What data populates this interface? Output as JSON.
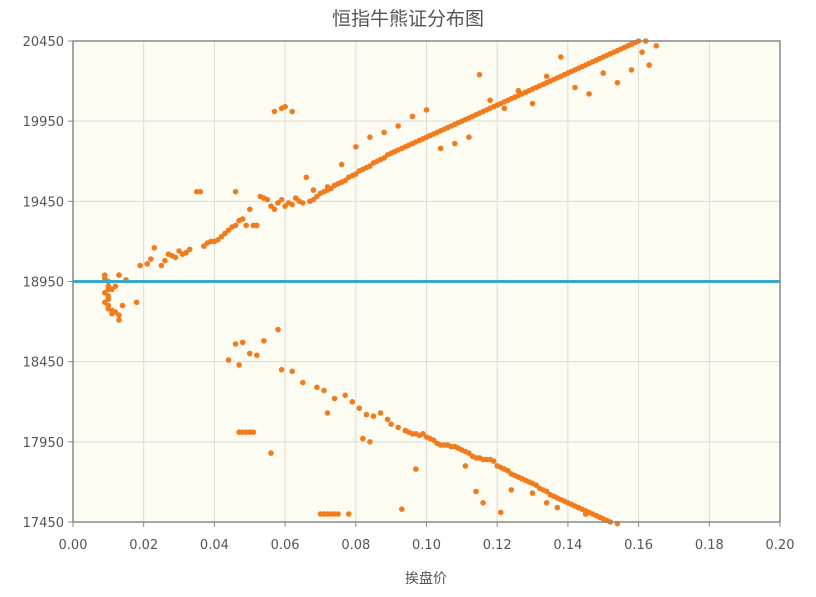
{
  "chart_data": {
    "type": "scatter",
    "title": "恒指牛熊证分布图",
    "xlabel": "挨盘价",
    "ylabel": "",
    "xlim": [
      0.0,
      0.2
    ],
    "ylim": [
      17450,
      20450
    ],
    "x_ticks": [
      "0.00",
      "0.02",
      "0.04",
      "0.06",
      "0.08",
      "0.10",
      "0.12",
      "0.14",
      "0.16",
      "0.18",
      "0.20"
    ],
    "y_ticks": [
      "20450",
      "19950",
      "19450",
      "18950",
      "18450",
      "17950",
      "17450"
    ],
    "grid": true,
    "reference_line": {
      "y": 18950,
      "color": "#3aa6c8"
    },
    "point_color": "#f07c1e",
    "series": [
      {
        "points": [
          [
            0.009,
            18990
          ],
          [
            0.009,
            18970
          ],
          [
            0.01,
            18950
          ],
          [
            0.01,
            18920
          ],
          [
            0.01,
            18900
          ],
          [
            0.009,
            18880
          ],
          [
            0.01,
            18860
          ],
          [
            0.01,
            18840
          ],
          [
            0.009,
            18820
          ],
          [
            0.01,
            18800
          ],
          [
            0.01,
            18780
          ],
          [
            0.011,
            18770
          ],
          [
            0.012,
            18760
          ],
          [
            0.013,
            18740
          ],
          [
            0.013,
            18710
          ],
          [
            0.011,
            18900
          ],
          [
            0.012,
            18920
          ],
          [
            0.013,
            18990
          ],
          [
            0.015,
            18960
          ],
          [
            0.018,
            18820
          ],
          [
            0.014,
            18800
          ],
          [
            0.011,
            18750
          ],
          [
            0.019,
            19050
          ],
          [
            0.021,
            19060
          ],
          [
            0.022,
            19090
          ],
          [
            0.023,
            19160
          ],
          [
            0.025,
            19050
          ],
          [
            0.026,
            19080
          ],
          [
            0.027,
            19120
          ],
          [
            0.028,
            19110
          ],
          [
            0.029,
            19100
          ],
          [
            0.03,
            19140
          ],
          [
            0.031,
            19120
          ],
          [
            0.032,
            19130
          ],
          [
            0.033,
            19150
          ],
          [
            0.035,
            19510
          ],
          [
            0.036,
            19510
          ],
          [
            0.037,
            19170
          ],
          [
            0.038,
            19190
          ],
          [
            0.039,
            19200
          ],
          [
            0.04,
            19200
          ],
          [
            0.041,
            19210
          ],
          [
            0.042,
            19230
          ],
          [
            0.043,
            19250
          ],
          [
            0.044,
            19270
          ],
          [
            0.045,
            19290
          ],
          [
            0.046,
            19300
          ],
          [
            0.046,
            19510
          ],
          [
            0.047,
            19330
          ],
          [
            0.048,
            19340
          ],
          [
            0.049,
            19300
          ],
          [
            0.05,
            19400
          ],
          [
            0.051,
            19300
          ],
          [
            0.052,
            19300
          ],
          [
            0.053,
            19480
          ],
          [
            0.054,
            19470
          ],
          [
            0.055,
            19460
          ],
          [
            0.056,
            19420
          ],
          [
            0.057,
            19400
          ],
          [
            0.058,
            19440
          ],
          [
            0.059,
            19460
          ],
          [
            0.06,
            19420
          ],
          [
            0.061,
            19440
          ],
          [
            0.062,
            19430
          ],
          [
            0.063,
            19470
          ],
          [
            0.064,
            19450
          ],
          [
            0.065,
            19440
          ],
          [
            0.066,
            19600
          ],
          [
            0.067,
            19450
          ],
          [
            0.068,
            19460
          ],
          [
            0.069,
            19480
          ],
          [
            0.07,
            19500
          ],
          [
            0.071,
            19510
          ],
          [
            0.072,
            19520
          ],
          [
            0.073,
            19530
          ],
          [
            0.074,
            19550
          ],
          [
            0.075,
            19560
          ],
          [
            0.076,
            19570
          ],
          [
            0.077,
            19580
          ],
          [
            0.078,
            19600
          ],
          [
            0.079,
            19610
          ],
          [
            0.08,
            19620
          ],
          [
            0.081,
            19640
          ],
          [
            0.082,
            19650
          ],
          [
            0.083,
            19660
          ],
          [
            0.084,
            19670
          ],
          [
            0.085,
            19690
          ],
          [
            0.086,
            19700
          ],
          [
            0.087,
            19710
          ],
          [
            0.088,
            19720
          ],
          [
            0.089,
            19740
          ],
          [
            0.09,
            19750
          ],
          [
            0.091,
            19760
          ],
          [
            0.092,
            19770
          ],
          [
            0.093,
            19780
          ],
          [
            0.094,
            19790
          ],
          [
            0.095,
            19800
          ],
          [
            0.096,
            19810
          ],
          [
            0.097,
            19820
          ],
          [
            0.098,
            19830
          ],
          [
            0.099,
            19840
          ],
          [
            0.1,
            19850
          ],
          [
            0.101,
            19860
          ],
          [
            0.102,
            19870
          ],
          [
            0.103,
            19880
          ],
          [
            0.104,
            19890
          ],
          [
            0.105,
            19900
          ],
          [
            0.106,
            19910
          ],
          [
            0.107,
            19920
          ],
          [
            0.108,
            19930
          ],
          [
            0.109,
            19940
          ],
          [
            0.11,
            19950
          ],
          [
            0.111,
            19960
          ],
          [
            0.112,
            19970
          ],
          [
            0.113,
            19980
          ],
          [
            0.114,
            19990
          ],
          [
            0.115,
            20000
          ],
          [
            0.116,
            20010
          ],
          [
            0.117,
            20020
          ],
          [
            0.118,
            20030
          ],
          [
            0.119,
            20040
          ],
          [
            0.12,
            20050
          ],
          [
            0.121,
            20060
          ],
          [
            0.122,
            20070
          ],
          [
            0.123,
            20080
          ],
          [
            0.124,
            20090
          ],
          [
            0.125,
            20100
          ],
          [
            0.126,
            20110
          ],
          [
            0.127,
            20120
          ],
          [
            0.128,
            20130
          ],
          [
            0.129,
            20140
          ],
          [
            0.13,
            20150
          ],
          [
            0.131,
            20160
          ],
          [
            0.132,
            20170
          ],
          [
            0.133,
            20180
          ],
          [
            0.134,
            20190
          ],
          [
            0.135,
            20200
          ],
          [
            0.136,
            20210
          ],
          [
            0.137,
            20220
          ],
          [
            0.138,
            20230
          ],
          [
            0.139,
            20240
          ],
          [
            0.14,
            20250
          ],
          [
            0.141,
            20260
          ],
          [
            0.142,
            20270
          ],
          [
            0.143,
            20280
          ],
          [
            0.144,
            20290
          ],
          [
            0.145,
            20300
          ],
          [
            0.146,
            20310
          ],
          [
            0.147,
            20320
          ],
          [
            0.148,
            20330
          ],
          [
            0.149,
            20340
          ],
          [
            0.15,
            20350
          ],
          [
            0.151,
            20360
          ],
          [
            0.152,
            20370
          ],
          [
            0.153,
            20380
          ],
          [
            0.154,
            20390
          ],
          [
            0.155,
            20400
          ],
          [
            0.156,
            20410
          ],
          [
            0.157,
            20420
          ],
          [
            0.158,
            20430
          ],
          [
            0.159,
            20440
          ],
          [
            0.16,
            20450
          ],
          [
            0.162,
            20450
          ],
          [
            0.165,
            20420
          ],
          [
            0.057,
            20010
          ],
          [
            0.059,
            20030
          ],
          [
            0.06,
            20040
          ],
          [
            0.062,
            20010
          ],
          [
            0.068,
            19520
          ],
          [
            0.072,
            19540
          ],
          [
            0.076,
            19680
          ],
          [
            0.08,
            19790
          ],
          [
            0.084,
            19850
          ],
          [
            0.088,
            19880
          ],
          [
            0.092,
            19920
          ],
          [
            0.096,
            19980
          ],
          [
            0.1,
            20020
          ],
          [
            0.104,
            19780
          ],
          [
            0.108,
            19810
          ],
          [
            0.112,
            19850
          ],
          [
            0.115,
            20240
          ],
          [
            0.118,
            20080
          ],
          [
            0.122,
            20030
          ],
          [
            0.126,
            20140
          ],
          [
            0.13,
            20060
          ],
          [
            0.134,
            20230
          ],
          [
            0.138,
            20350
          ],
          [
            0.142,
            20160
          ],
          [
            0.146,
            20120
          ],
          [
            0.15,
            20250
          ],
          [
            0.154,
            20190
          ],
          [
            0.158,
            20270
          ],
          [
            0.161,
            20380
          ],
          [
            0.163,
            20300
          ],
          [
            0.044,
            18460
          ],
          [
            0.046,
            18560
          ],
          [
            0.047,
            18430
          ],
          [
            0.048,
            18570
          ],
          [
            0.05,
            18500
          ],
          [
            0.052,
            18490
          ],
          [
            0.054,
            18580
          ],
          [
            0.058,
            18650
          ],
          [
            0.059,
            18400
          ],
          [
            0.062,
            18390
          ],
          [
            0.065,
            18320
          ],
          [
            0.069,
            18290
          ],
          [
            0.071,
            18270
          ],
          [
            0.072,
            18130
          ],
          [
            0.074,
            18220
          ],
          [
            0.077,
            18240
          ],
          [
            0.079,
            18200
          ],
          [
            0.081,
            18160
          ],
          [
            0.083,
            18120
          ],
          [
            0.085,
            18110
          ],
          [
            0.087,
            18130
          ],
          [
            0.089,
            18090
          ],
          [
            0.09,
            18060
          ],
          [
            0.092,
            18040
          ],
          [
            0.094,
            18020
          ],
          [
            0.095,
            18010
          ],
          [
            0.096,
            18000
          ],
          [
            0.097,
            18000
          ],
          [
            0.098,
            17990
          ],
          [
            0.099,
            18000
          ],
          [
            0.1,
            17980
          ],
          [
            0.101,
            17970
          ],
          [
            0.102,
            17960
          ],
          [
            0.103,
            17940
          ],
          [
            0.104,
            17930
          ],
          [
            0.105,
            17930
          ],
          [
            0.106,
            17930
          ],
          [
            0.107,
            17920
          ],
          [
            0.108,
            17920
          ],
          [
            0.109,
            17910
          ],
          [
            0.11,
            17900
          ],
          [
            0.111,
            17890
          ],
          [
            0.112,
            17880
          ],
          [
            0.113,
            17860
          ],
          [
            0.114,
            17850
          ],
          [
            0.115,
            17850
          ],
          [
            0.116,
            17840
          ],
          [
            0.117,
            17840
          ],
          [
            0.118,
            17840
          ],
          [
            0.119,
            17830
          ],
          [
            0.12,
            17800
          ],
          [
            0.121,
            17790
          ],
          [
            0.122,
            17780
          ],
          [
            0.123,
            17770
          ],
          [
            0.124,
            17750
          ],
          [
            0.125,
            17740
          ],
          [
            0.126,
            17730
          ],
          [
            0.127,
            17720
          ],
          [
            0.128,
            17710
          ],
          [
            0.129,
            17700
          ],
          [
            0.13,
            17690
          ],
          [
            0.131,
            17680
          ],
          [
            0.132,
            17660
          ],
          [
            0.133,
            17650
          ],
          [
            0.134,
            17640
          ],
          [
            0.135,
            17620
          ],
          [
            0.136,
            17610
          ],
          [
            0.137,
            17600
          ],
          [
            0.138,
            17590
          ],
          [
            0.139,
            17580
          ],
          [
            0.14,
            17570
          ],
          [
            0.141,
            17560
          ],
          [
            0.142,
            17550
          ],
          [
            0.143,
            17540
          ],
          [
            0.144,
            17530
          ],
          [
            0.145,
            17520
          ],
          [
            0.146,
            17510
          ],
          [
            0.147,
            17500
          ],
          [
            0.148,
            17490
          ],
          [
            0.149,
            17480
          ],
          [
            0.15,
            17470
          ],
          [
            0.151,
            17460
          ],
          [
            0.152,
            17450
          ],
          [
            0.154,
            17440
          ],
          [
            0.047,
            18010
          ],
          [
            0.048,
            18010
          ],
          [
            0.049,
            18010
          ],
          [
            0.05,
            18010
          ],
          [
            0.051,
            18010
          ],
          [
            0.056,
            17880
          ],
          [
            0.082,
            17970
          ],
          [
            0.084,
            17950
          ],
          [
            0.093,
            17530
          ],
          [
            0.097,
            17780
          ],
          [
            0.111,
            17800
          ],
          [
            0.114,
            17640
          ],
          [
            0.116,
            17570
          ],
          [
            0.121,
            17510
          ],
          [
            0.124,
            17650
          ],
          [
            0.127,
            17720
          ],
          [
            0.13,
            17630
          ],
          [
            0.134,
            17570
          ],
          [
            0.137,
            17540
          ],
          [
            0.141,
            17560
          ],
          [
            0.145,
            17500
          ],
          [
            0.149,
            17480
          ],
          [
            0.07,
            17500
          ],
          [
            0.071,
            17500
          ],
          [
            0.072,
            17500
          ],
          [
            0.073,
            17500
          ],
          [
            0.074,
            17500
          ],
          [
            0.075,
            17500
          ],
          [
            0.078,
            17500
          ]
        ]
      }
    ]
  }
}
